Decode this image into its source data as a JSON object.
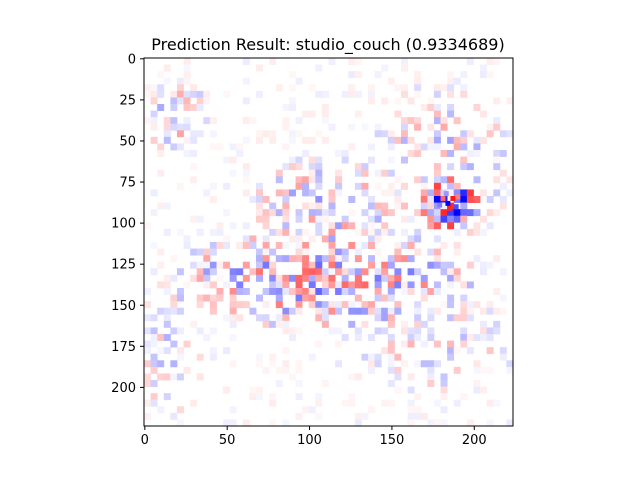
{
  "chart_data": {
    "type": "heatmap",
    "title": "Prediction Result: studio_couch (0.9334689)",
    "xlabel": "",
    "ylabel": "",
    "image_size": [
      224,
      224
    ],
    "xlim": [
      -0.5,
      223.5
    ],
    "ylim": [
      223.5,
      -0.5
    ],
    "x_ticks": [
      0,
      50,
      100,
      150,
      200
    ],
    "y_ticks": [
      0,
      25,
      50,
      75,
      100,
      125,
      150,
      175,
      200
    ],
    "colormap": "bwr",
    "color_low": "#0000ff",
    "color_mid": "#ffffff",
    "color_high": "#ff0000",
    "hotspot_regions": [
      {
        "x": [
          0,
          35
        ],
        "y": [
          20,
          50
        ],
        "strength": 0.35
      },
      {
        "x": [
          0,
          30
        ],
        "y": [
          140,
          215
        ],
        "strength": 0.25
      },
      {
        "x": [
          20,
          200
        ],
        "y": [
          110,
          160
        ],
        "strength": 0.5
      },
      {
        "x": [
          70,
          150
        ],
        "y": [
          65,
          120
        ],
        "strength": 0.35
      },
      {
        "x": [
          140,
          220
        ],
        "y": [
          20,
          110
        ],
        "strength": 0.3
      },
      {
        "x": [
          170,
          200
        ],
        "y": [
          78,
          100
        ],
        "strength": 0.9
      },
      {
        "x": [
          120,
          223
        ],
        "y": [
          150,
          200
        ],
        "strength": 0.25
      }
    ]
  }
}
